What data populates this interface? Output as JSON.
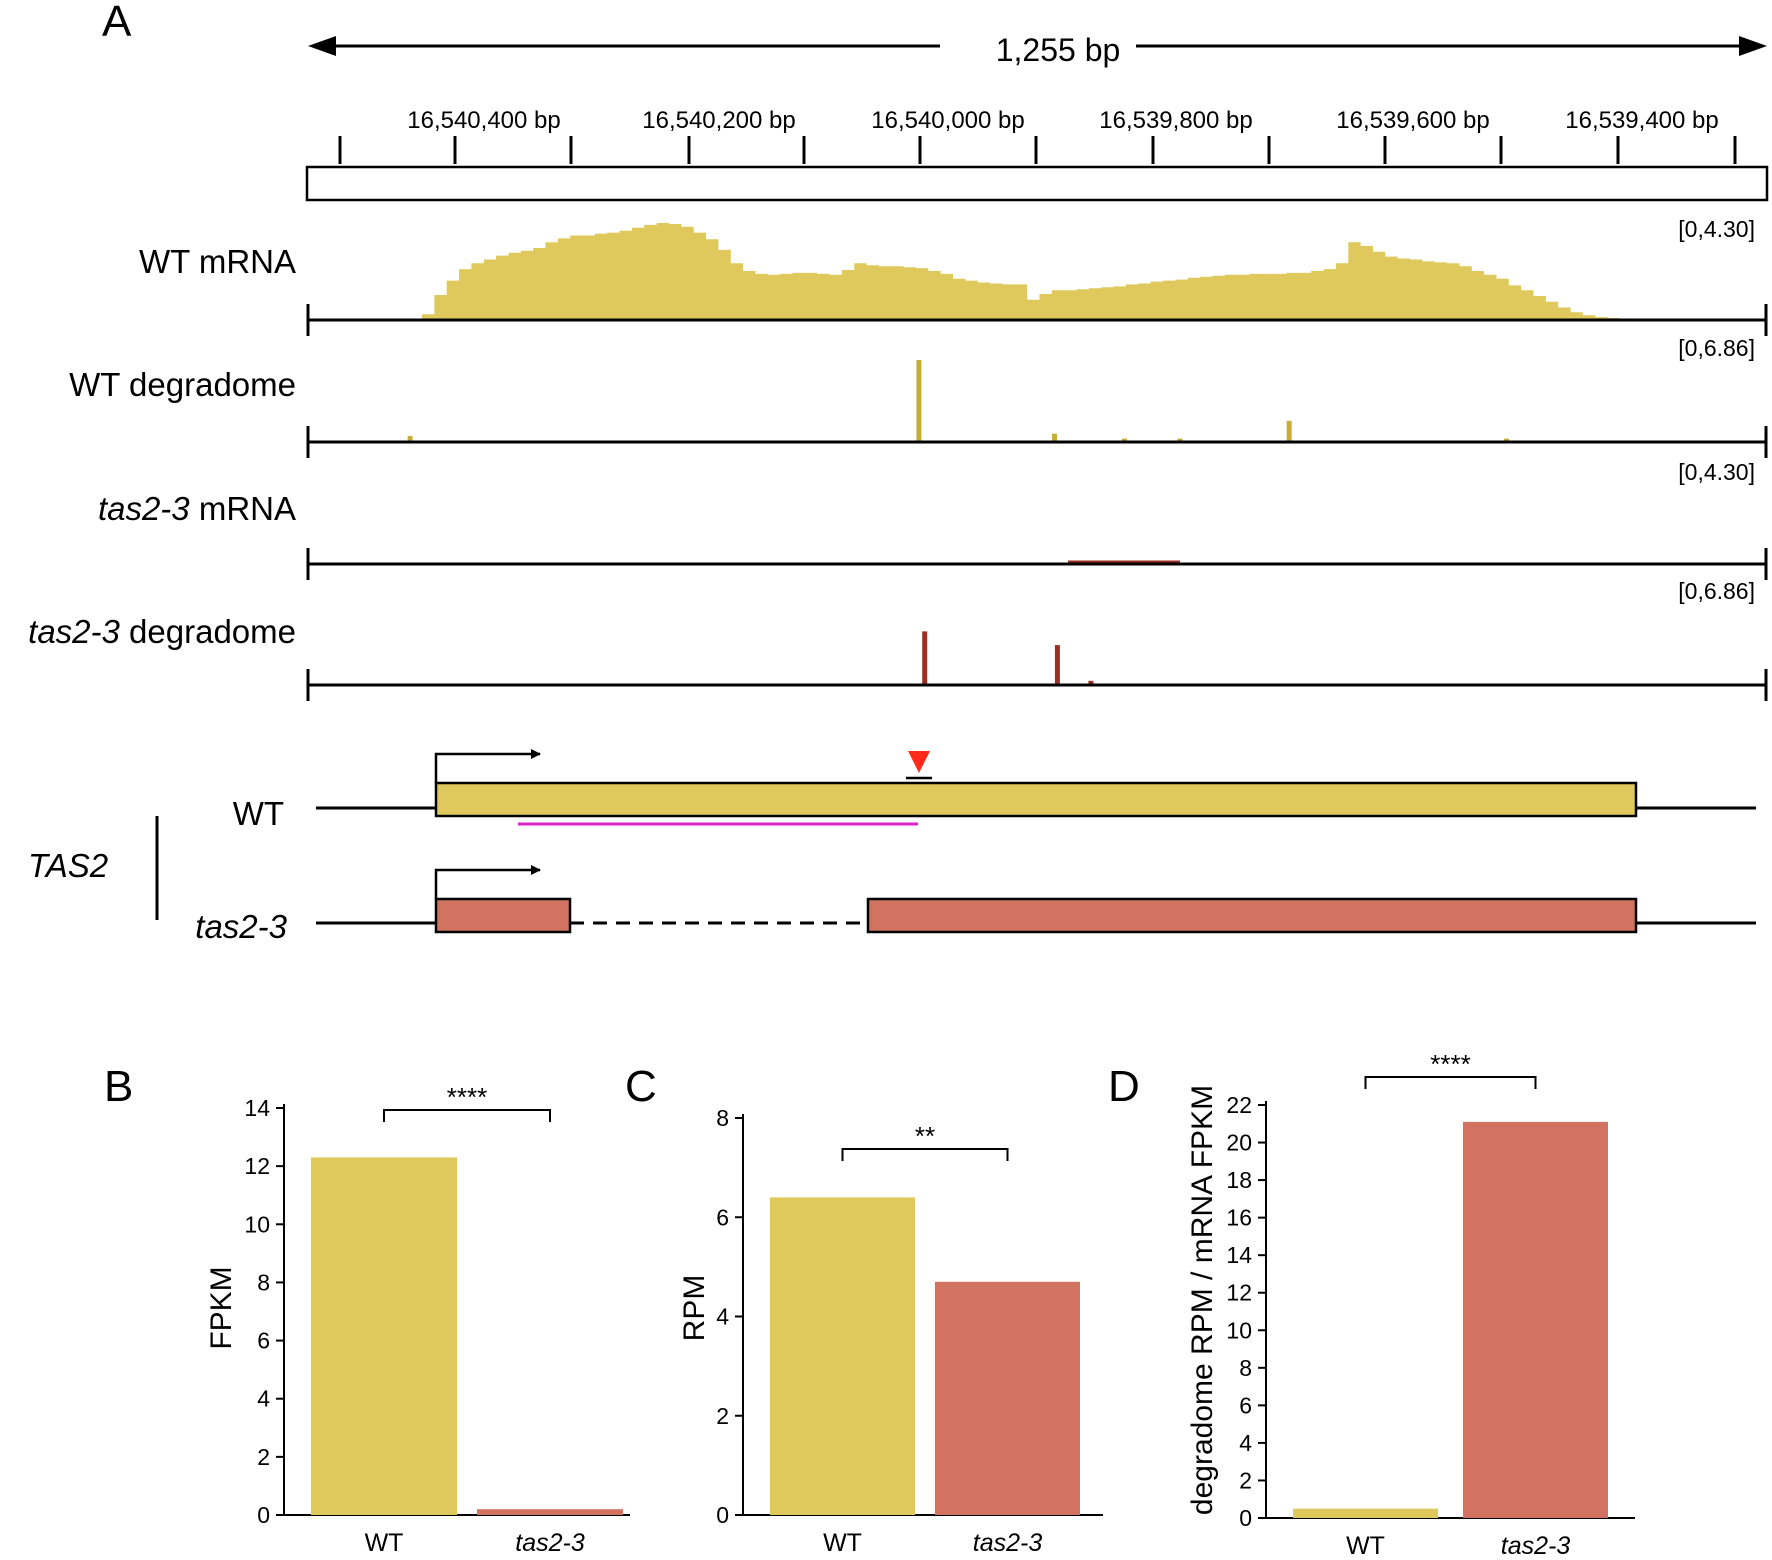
{
  "colors": {
    "wt": "#dfc95c",
    "wt_dark": "#c6ad3a",
    "mut": "#d27361",
    "mut_dark": "#9a2f25",
    "cleave": "#ff2a1a",
    "magenta": "#dd22cc"
  },
  "panel_a": {
    "label": "A",
    "span_label": "1,255 bp",
    "ruler_ticks": [
      "16,540,400 bp",
      "16,540,200 bp",
      "16,540,000 bp",
      "16,539,800 bp",
      "16,539,600 bp",
      "16,539,400 bp"
    ],
    "tracks": [
      {
        "label_a": "WT",
        "label_b": "mRNA",
        "range": "[0,4.30]",
        "italic": false
      },
      {
        "label_a": "WT",
        "label_b": "degradome",
        "range": "[0,6.86]",
        "italic": false
      },
      {
        "label_a": "tas2-3",
        "label_b": "mRNA",
        "range": "[0,4.30]",
        "italic": true
      },
      {
        "label_a": "tas2-3",
        "label_b": "degradome",
        "range": "[0,6.86]",
        "italic": true
      }
    ],
    "wt_mrna_coverage": [
      0.05,
      0.25,
      0.4,
      0.52,
      0.58,
      0.62,
      0.66,
      0.69,
      0.71,
      0.74,
      0.8,
      0.84,
      0.87,
      0.87,
      0.89,
      0.9,
      0.92,
      0.95,
      0.98,
      1.0,
      0.99,
      0.96,
      0.9,
      0.83,
      0.72,
      0.58,
      0.5,
      0.47,
      0.46,
      0.47,
      0.48,
      0.48,
      0.47,
      0.46,
      0.51,
      0.58,
      0.56,
      0.55,
      0.55,
      0.54,
      0.53,
      0.5,
      0.47,
      0.42,
      0.4,
      0.38,
      0.37,
      0.36,
      0.36,
      0.2,
      0.26,
      0.3,
      0.3,
      0.31,
      0.32,
      0.33,
      0.34,
      0.36,
      0.37,
      0.39,
      0.4,
      0.41,
      0.43,
      0.44,
      0.45,
      0.46,
      0.46,
      0.47,
      0.47,
      0.47,
      0.48,
      0.48,
      0.5,
      0.52,
      0.58,
      0.8,
      0.76,
      0.7,
      0.65,
      0.63,
      0.62,
      0.6,
      0.59,
      0.58,
      0.55,
      0.5,
      0.46,
      0.42,
      0.35,
      0.3,
      0.24,
      0.18,
      0.12,
      0.07,
      0.04,
      0.02,
      0.01
    ],
    "wt_degradome_peaks": [
      [
        0.07,
        0.06
      ],
      [
        0.419,
        1.0
      ],
      [
        0.512,
        0.09
      ],
      [
        0.56,
        0.03
      ],
      [
        0.598,
        0.03
      ],
      [
        0.673,
        0.25
      ],
      [
        0.822,
        0.03
      ]
    ],
    "tas_degradome_peaks": [
      [
        0.423,
        0.65
      ],
      [
        0.514,
        0.48
      ],
      [
        0.537,
        0.04
      ]
    ],
    "gene_label": "TAS2",
    "gene_rows": [
      {
        "label": "WT",
        "italic": false
      },
      {
        "label": "tas2-3",
        "italic": true
      }
    ]
  },
  "chart_data": [
    {
      "type": "bar",
      "panel": "B",
      "categories": [
        "WT",
        "tas2-3"
      ],
      "values": [
        12.3,
        0.2
      ],
      "ylabel": "FPKM",
      "ylim": [
        0,
        14
      ],
      "yticks": [
        "0",
        "2",
        "4",
        "6",
        "8",
        "10",
        "12",
        "14"
      ],
      "significance": "****"
    },
    {
      "type": "bar",
      "panel": "C",
      "categories": [
        "WT",
        "tas2-3"
      ],
      "values": [
        6.4,
        4.7
      ],
      "ylabel": "RPM",
      "ylim": [
        0,
        8
      ],
      "yticks": [
        "0",
        "2",
        "4",
        "6",
        "8"
      ],
      "significance": "**"
    },
    {
      "type": "bar",
      "panel": "D",
      "categories": [
        "WT",
        "tas2-3"
      ],
      "values": [
        0.5,
        21.1
      ],
      "ylabel": "degradome RPM / mRNA FPKM",
      "ylim": [
        0,
        22
      ],
      "yticks": [
        "0",
        "2",
        "4",
        "6",
        "8",
        "10",
        "12",
        "14",
        "16",
        "18",
        "20",
        "22"
      ],
      "significance": "****"
    }
  ]
}
